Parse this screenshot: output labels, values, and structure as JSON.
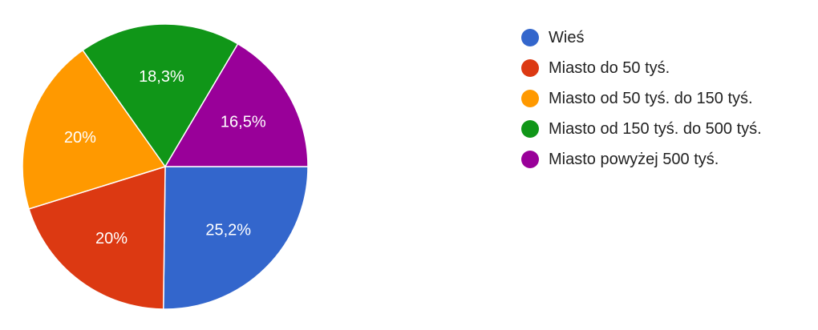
{
  "chart_data": {
    "type": "pie",
    "title": "",
    "legend_position": "right",
    "slices": [
      {
        "name": "Wieś",
        "value": 25.2,
        "label": "25,2%",
        "color": "#3366cc"
      },
      {
        "name": "Miasto do 50 tyś.",
        "value": 20.0,
        "label": "20%",
        "color": "#dc3912"
      },
      {
        "name": "Miasto od 50 tyś. do 150 tyś.",
        "value": 20.0,
        "label": "20%",
        "color": "#ff9900"
      },
      {
        "name": "Miasto od 150 tyś. do 500 tyś.",
        "value": 18.3,
        "label": "18,3%",
        "color": "#109618"
      },
      {
        "name": "Miasto powyżej 500 tyś.",
        "value": 16.5,
        "label": "16,5%",
        "color": "#990099"
      }
    ]
  }
}
